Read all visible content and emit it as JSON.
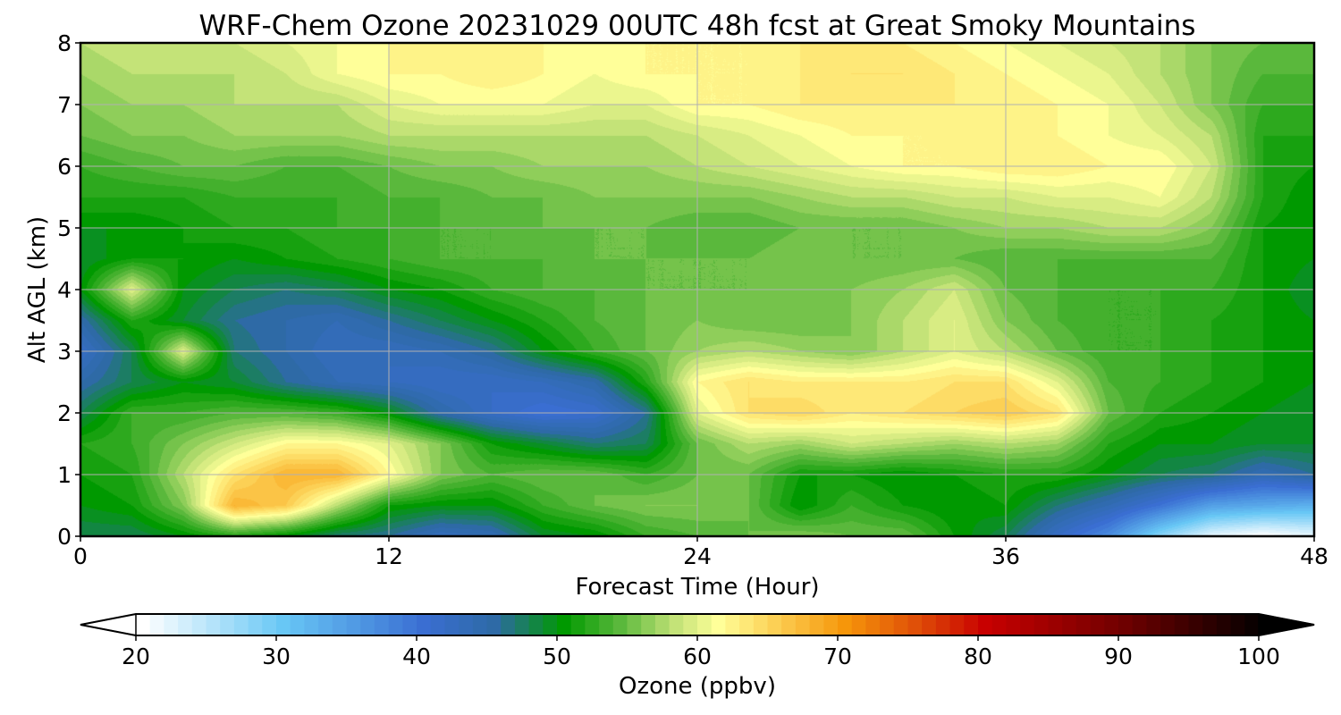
{
  "chart_data": {
    "type": "heatmap",
    "subtype": "filled-contour",
    "title": "WRF-Chem Ozone  20231029 00UTC 48h fcst at Great Smoky Mountains",
    "xlabel": "Forecast Time (Hour)",
    "ylabel": "Alt AGL (km)",
    "xlim": [
      0,
      48
    ],
    "ylim": [
      0,
      8
    ],
    "xticks": [
      0,
      12,
      24,
      36,
      48
    ],
    "yticks": [
      0,
      1,
      2,
      3,
      4,
      5,
      6,
      7,
      8
    ],
    "grid": true,
    "colorbar": {
      "label": "Ozone  (ppbv)",
      "min": 20,
      "max": 100,
      "ticks": [
        20,
        30,
        40,
        50,
        60,
        70,
        80,
        90,
        100
      ],
      "extend": "both",
      "orientation": "horizontal",
      "stops": [
        {
          "v": 20,
          "c": "#ffffff"
        },
        {
          "v": 30,
          "c": "#68c7f5"
        },
        {
          "v": 40,
          "c": "#3a6ed2"
        },
        {
          "v": 45,
          "c": "#2e6aa6"
        },
        {
          "v": 50,
          "c": "#009900"
        },
        {
          "v": 54,
          "c": "#5ab83c"
        },
        {
          "v": 58,
          "c": "#c4e378"
        },
        {
          "v": 61,
          "c": "#ffff99"
        },
        {
          "v": 65,
          "c": "#fcd055"
        },
        {
          "v": 70,
          "c": "#f6960a"
        },
        {
          "v": 75,
          "c": "#e05008"
        },
        {
          "v": 80,
          "c": "#c80000"
        },
        {
          "v": 90,
          "c": "#6e0000"
        },
        {
          "v": 100,
          "c": "#000000"
        }
      ]
    },
    "time_hours": [
      0,
      2,
      4,
      6,
      8,
      10,
      12,
      14,
      16,
      18,
      20,
      22,
      24,
      26,
      28,
      30,
      32,
      34,
      36,
      38,
      40,
      42,
      44,
      46,
      48
    ],
    "altitude_km": [
      0,
      0.5,
      1,
      1.5,
      2,
      2.5,
      3,
      3.5,
      4,
      4.5,
      5,
      5.5,
      6,
      6.5,
      7,
      7.5,
      8
    ],
    "ozone_ppbv_rows_by_altitude": [
      [
        48,
        48,
        50,
        52,
        50,
        47,
        46,
        43,
        44,
        49,
        50,
        53,
        54,
        55,
        56,
        55,
        55,
        51,
        48,
        42,
        37,
        28,
        22,
        20,
        22
      ],
      [
        50,
        51,
        56,
        68,
        66,
        58,
        51,
        50,
        50,
        53,
        55,
        56,
        56,
        55,
        50,
        53,
        51,
        50,
        51,
        47,
        44,
        40,
        35,
        34,
        33
      ],
      [
        51,
        52,
        58,
        64,
        68,
        68,
        62,
        56,
        54,
        55,
        55,
        53,
        55,
        55,
        51,
        51,
        50,
        51,
        52,
        52,
        50,
        48,
        47,
        44,
        46
      ],
      [
        52,
        53,
        56,
        59,
        62,
        62,
        60,
        56,
        51,
        49,
        47,
        48,
        55,
        58,
        57,
        59,
        58,
        57,
        58,
        57,
        52,
        50,
        50,
        49,
        49
      ],
      [
        48,
        53,
        53,
        54,
        54,
        53,
        50,
        45,
        42,
        40,
        41,
        46,
        60,
        64,
        65,
        63,
        64,
        65,
        66,
        64,
        55,
        52,
        51,
        50,
        49
      ],
      [
        45,
        48,
        50,
        49,
        46,
        44,
        43,
        42,
        42,
        43,
        45,
        52,
        62,
        64,
        63,
        63,
        63,
        64,
        64,
        60,
        54,
        53,
        52,
        51,
        50
      ],
      [
        42,
        48,
        60,
        47,
        45,
        43,
        43,
        44,
        46,
        50,
        53,
        55,
        57,
        58,
        57,
        56,
        58,
        60,
        58,
        55,
        53,
        53,
        52,
        51,
        50
      ],
      [
        45,
        52,
        49,
        46,
        45,
        44,
        46,
        48,
        50,
        52,
        54,
        55,
        56,
        55,
        55,
        56,
        58,
        60,
        56,
        54,
        53,
        53,
        52,
        51,
        50
      ],
      [
        50,
        60,
        50,
        48,
        47,
        48,
        50,
        51,
        53,
        54,
        54,
        55,
        55,
        55,
        56,
        56,
        57,
        59,
        55,
        54,
        53,
        53,
        53,
        51,
        49
      ],
      [
        49,
        51,
        51,
        50,
        51,
        52,
        53,
        54,
        54,
        54,
        55,
        55,
        55,
        55,
        56,
        55,
        55,
        55,
        54,
        54,
        54,
        54,
        54,
        51,
        50
      ],
      [
        50,
        50,
        51,
        52,
        52,
        53,
        53,
        54,
        54,
        55,
        55,
        55,
        54,
        54,
        55,
        55,
        55,
        56,
        57,
        57,
        58,
        58,
        56,
        51,
        50
      ],
      [
        52,
        52,
        52,
        53,
        53,
        53,
        54,
        54,
        55,
        55,
        56,
        56,
        56,
        56,
        57,
        58,
        58,
        59,
        59,
        60,
        60,
        61,
        58,
        52,
        50
      ],
      [
        53,
        54,
        55,
        55,
        54,
        54,
        55,
        56,
        56,
        57,
        57,
        57,
        58,
        59,
        60,
        61,
        62,
        62,
        63,
        63,
        62,
        62,
        59,
        52,
        51
      ],
      [
        55,
        56,
        56,
        57,
        57,
        57,
        58,
        58,
        58,
        58,
        58,
        58,
        59,
        60,
        61,
        62,
        62,
        62,
        62,
        62,
        61,
        60,
        58,
        52,
        52
      ],
      [
        56,
        57,
        57,
        58,
        58,
        58,
        60,
        61,
        61,
        61,
        60,
        60,
        62,
        62,
        63,
        63,
        63,
        63,
        63,
        62,
        61,
        59,
        56,
        53,
        53
      ],
      [
        57,
        58,
        58,
        58,
        59,
        61,
        62,
        62,
        63,
        62,
        61,
        62,
        62,
        62,
        63,
        64,
        64,
        63,
        62,
        61,
        60,
        58,
        56,
        54,
        54
      ],
      [
        58,
        59,
        59,
        59,
        60,
        61,
        62,
        63,
        63,
        62,
        61,
        62,
        62,
        62,
        63,
        63,
        63,
        62,
        61,
        60,
        59,
        58,
        56,
        55,
        55
      ]
    ]
  }
}
